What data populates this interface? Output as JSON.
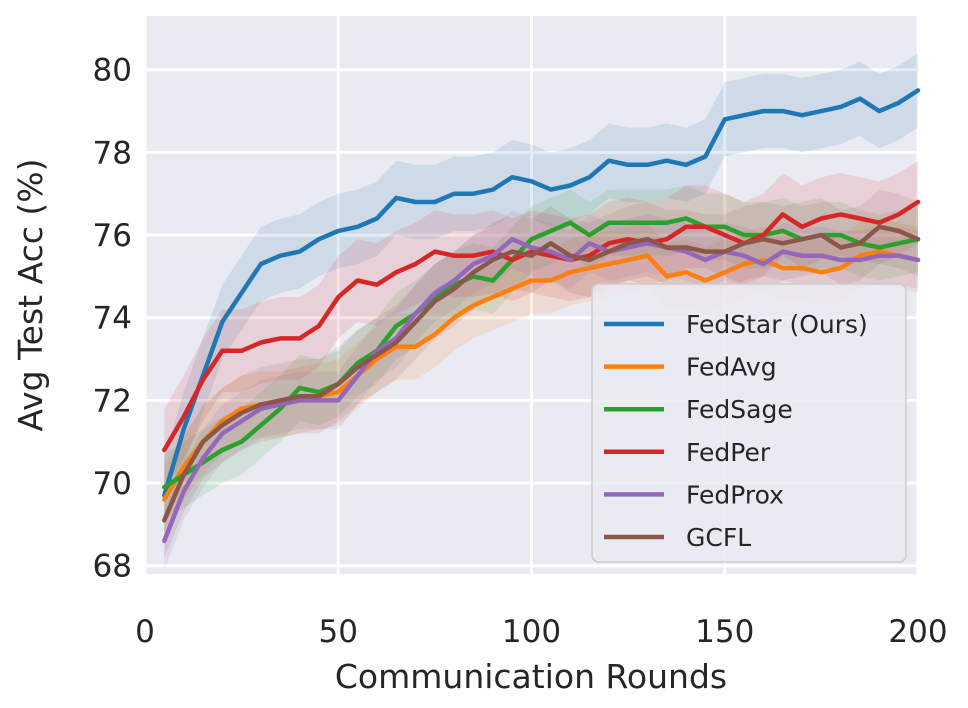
{
  "chart_data": {
    "type": "line",
    "title": "",
    "xlabel": "Communication Rounds",
    "ylabel": "Avg Test Acc (%)",
    "xlim": [
      0,
      200
    ],
    "ylim": [
      67.8,
      81.3
    ],
    "xticks": [
      0,
      50,
      100,
      150,
      200
    ],
    "yticks": [
      68,
      70,
      72,
      74,
      76,
      78,
      80
    ],
    "grid": true,
    "legend_position": "lower-right",
    "x": [
      5,
      10,
      15,
      20,
      25,
      30,
      35,
      40,
      45,
      50,
      55,
      60,
      65,
      70,
      75,
      80,
      85,
      90,
      95,
      100,
      105,
      110,
      115,
      120,
      125,
      130,
      135,
      140,
      145,
      150,
      155,
      160,
      165,
      170,
      175,
      180,
      185,
      190,
      195,
      200
    ],
    "series": [
      {
        "name": "FedStar (Ours)",
        "color": "#1f77b4",
        "band": 0.9,
        "values": [
          69.7,
          71.3,
          72.6,
          73.9,
          74.6,
          75.3,
          75.5,
          75.6,
          75.9,
          76.1,
          76.2,
          76.4,
          76.9,
          76.8,
          76.8,
          77.0,
          77.0,
          77.1,
          77.4,
          77.3,
          77.1,
          77.2,
          77.4,
          77.8,
          77.7,
          77.7,
          77.8,
          77.7,
          77.9,
          78.8,
          78.9,
          79.0,
          79.0,
          78.9,
          79.0,
          79.1,
          79.3,
          79.0,
          79.2,
          79.5
        ]
      },
      {
        "name": "FedAvg",
        "color": "#ff7f0e",
        "band": 0.8,
        "values": [
          69.6,
          70.4,
          71.0,
          71.5,
          71.8,
          71.9,
          71.9,
          72.0,
          72.1,
          72.2,
          72.6,
          73.0,
          73.3,
          73.3,
          73.6,
          74.0,
          74.3,
          74.5,
          74.7,
          74.9,
          74.9,
          75.1,
          75.2,
          75.3,
          75.4,
          75.5,
          75.0,
          75.1,
          74.9,
          75.1,
          75.3,
          75.4,
          75.2,
          75.2,
          75.1,
          75.2,
          75.5,
          75.6,
          75.5,
          75.4
        ]
      },
      {
        "name": "FedSage",
        "color": "#2ca02c",
        "band": 0.8,
        "values": [
          69.9,
          70.2,
          70.5,
          70.8,
          71.0,
          71.4,
          71.8,
          72.3,
          72.2,
          72.4,
          72.9,
          73.2,
          73.8,
          74.1,
          74.5,
          74.8,
          75.0,
          74.9,
          75.4,
          75.9,
          76.1,
          76.3,
          76.0,
          76.3,
          76.3,
          76.3,
          76.3,
          76.4,
          76.2,
          76.2,
          76.0,
          76.0,
          76.1,
          75.9,
          76.0,
          76.0,
          75.8,
          75.7,
          75.8,
          75.9
        ]
      },
      {
        "name": "FedPer",
        "color": "#d62728",
        "band": 1.0,
        "values": [
          70.8,
          71.6,
          72.5,
          73.2,
          73.2,
          73.4,
          73.5,
          73.5,
          73.8,
          74.5,
          74.9,
          74.8,
          75.1,
          75.3,
          75.6,
          75.5,
          75.5,
          75.6,
          75.4,
          75.6,
          75.5,
          75.4,
          75.5,
          75.8,
          75.9,
          75.8,
          75.9,
          76.2,
          76.2,
          76.0,
          75.8,
          76.0,
          76.5,
          76.2,
          76.4,
          76.5,
          76.4,
          76.3,
          76.5,
          76.8
        ]
      },
      {
        "name": "FedProx",
        "color": "#9467bd",
        "band": 0.7,
        "values": [
          68.6,
          69.8,
          70.6,
          71.2,
          71.5,
          71.8,
          71.9,
          72.0,
          72.0,
          72.0,
          72.6,
          73.2,
          73.5,
          74.1,
          74.6,
          74.9,
          75.3,
          75.5,
          75.9,
          75.7,
          75.6,
          75.4,
          75.8,
          75.6,
          75.7,
          75.8,
          75.7,
          75.6,
          75.4,
          75.6,
          75.5,
          75.3,
          75.6,
          75.5,
          75.5,
          75.4,
          75.4,
          75.5,
          75.5,
          75.4
        ]
      },
      {
        "name": "GCFL",
        "color": "#8c564b",
        "band": 0.9,
        "values": [
          69.1,
          70.2,
          71.0,
          71.4,
          71.7,
          71.9,
          72.0,
          72.1,
          72.1,
          72.4,
          72.8,
          73.1,
          73.4,
          73.9,
          74.4,
          74.7,
          75.1,
          75.4,
          75.6,
          75.5,
          75.8,
          75.5,
          75.4,
          75.6,
          75.8,
          75.9,
          75.7,
          75.7,
          75.6,
          75.6,
          75.8,
          75.9,
          75.8,
          75.9,
          76.0,
          75.7,
          75.8,
          76.2,
          76.1,
          75.9
        ]
      }
    ]
  }
}
